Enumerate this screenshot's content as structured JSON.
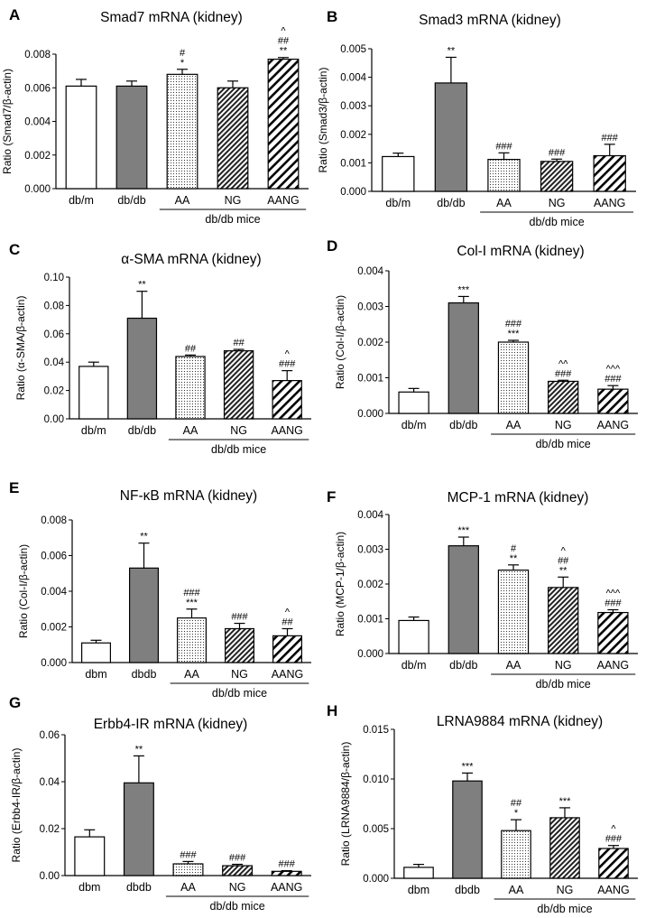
{
  "colors": {
    "white_bar": "#ffffff",
    "gray_bar": "#7f7f7f",
    "stroke": "#000000"
  },
  "chart_data": [
    {
      "type": "bar",
      "letter": "A",
      "title": "Smad7 mRNA (kidney)",
      "ylabel": "Ratio (Smad7/β-actin)",
      "categories": [
        "db/m",
        "db/db",
        "AA",
        "NG",
        "AANG"
      ],
      "values": [
        0.0061,
        0.0061,
        0.0068,
        0.006,
        0.0077
      ],
      "errors": [
        0.0004,
        0.0003,
        0.0003,
        0.0004,
        0.0001
      ],
      "annotations": [
        [],
        [],
        [
          "#",
          "*"
        ],
        [],
        [
          "^",
          "##",
          "**"
        ]
      ],
      "patterns": [
        "white",
        "gray",
        "dots",
        "dense",
        "hatch"
      ],
      "ylim": [
        0,
        0.008
      ],
      "yticks": [
        "0.000",
        "0.002",
        "0.004",
        "0.006",
        "0.008"
      ],
      "group_label": "db/db mice"
    },
    {
      "type": "bar",
      "letter": "B",
      "title": "Smad3 mRNA (kidney)",
      "ylabel": "Ratio (Smad3/β-actin)",
      "categories": [
        "db/m",
        "db/db",
        "AA",
        "NG",
        "AANG"
      ],
      "values": [
        0.00122,
        0.0038,
        0.00112,
        0.00105,
        0.00125
      ],
      "errors": [
        0.00012,
        0.0009,
        0.00023,
        8e-05,
        0.0004
      ],
      "annotations": [
        [],
        [
          "**"
        ],
        [
          "###"
        ],
        [
          "###"
        ],
        [
          "###"
        ]
      ],
      "patterns": [
        "white",
        "gray",
        "dots",
        "dense",
        "hatch"
      ],
      "ylim": [
        0,
        0.005
      ],
      "yticks": [
        "0.000",
        "0.001",
        "0.002",
        "0.003",
        "0.004",
        "0.005"
      ],
      "group_label": "db/db mice"
    },
    {
      "type": "bar",
      "letter": "C",
      "title": "α-SMA mRNA  (kidney)",
      "ylabel": "Ratio (α-SMA/β-actin)",
      "categories": [
        "db/m",
        "db/db",
        "AA",
        "NG",
        "AANG"
      ],
      "values": [
        0.037,
        0.071,
        0.044,
        0.048,
        0.027
      ],
      "errors": [
        0.003,
        0.019,
        0.001,
        0.001,
        0.007
      ],
      "annotations": [
        [],
        [
          "**"
        ],
        [
          "##"
        ],
        [
          "##"
        ],
        [
          "^",
          "###"
        ]
      ],
      "patterns": [
        "white",
        "gray",
        "dots",
        "dense",
        "hatch"
      ],
      "ylim": [
        0,
        0.1
      ],
      "yticks": [
        "0.00",
        "0.02",
        "0.04",
        "0.06",
        "0.08",
        "0.10"
      ],
      "group_label": "db/db mice"
    },
    {
      "type": "bar",
      "letter": "D",
      "title": "Col-I mRNA (kidney)",
      "ylabel": "Ratio (Col-I/β-actin)",
      "categories": [
        "db/m",
        "db/db",
        "AA",
        "NG",
        "AANG"
      ],
      "values": [
        0.0006,
        0.0031,
        0.002,
        0.0009,
        0.00068
      ],
      "errors": [
        0.0001,
        0.00018,
        5e-05,
        3e-05,
        0.0001
      ],
      "annotations": [
        [],
        [
          "***"
        ],
        [
          "###",
          "***"
        ],
        [
          "^^",
          "###"
        ],
        [
          "^^^",
          "###"
        ]
      ],
      "patterns": [
        "white",
        "gray",
        "dots",
        "dense",
        "hatch"
      ],
      "ylim": [
        0,
        0.004
      ],
      "yticks": [
        "0.000",
        "0.001",
        "0.002",
        "0.003",
        "0.004"
      ],
      "group_label": "db/db mice"
    },
    {
      "type": "bar",
      "letter": "E",
      "title": "NF-κB mRNA (kidney)",
      "ylabel": "Ratio (Col-I/β-actin)",
      "categories": [
        "dbm",
        "dbdb",
        "AA",
        "NG",
        "AANG"
      ],
      "values": [
        0.0011,
        0.0053,
        0.0025,
        0.0019,
        0.0015
      ],
      "errors": [
        0.00015,
        0.0014,
        0.0005,
        0.0003,
        0.0004
      ],
      "annotations": [
        [],
        [
          "**"
        ],
        [
          "###",
          "***"
        ],
        [
          "###"
        ],
        [
          "^",
          "##"
        ]
      ],
      "patterns": [
        "white",
        "gray",
        "dots",
        "dense",
        "hatch"
      ],
      "ylim": [
        0,
        0.008
      ],
      "yticks": [
        "0.000",
        "0.002",
        "0.004",
        "0.006",
        "0.008"
      ],
      "group_label": "db/db mice"
    },
    {
      "type": "bar",
      "letter": "F",
      "title": "MCP-1 mRNA (kidney)",
      "ylabel": "Ratio (MCP-1/β-actin)",
      "categories": [
        "db/m",
        "db/db",
        "AA",
        "NG",
        "AANG"
      ],
      "values": [
        0.00095,
        0.0031,
        0.0024,
        0.0019,
        0.00118
      ],
      "errors": [
        0.0001,
        0.00025,
        0.00015,
        0.0003,
        8e-05
      ],
      "annotations": [
        [],
        [
          "***"
        ],
        [
          "#",
          "**"
        ],
        [
          "^",
          "##",
          "**"
        ],
        [
          "^^^",
          "###"
        ]
      ],
      "patterns": [
        "white",
        "gray",
        "dots",
        "dense",
        "hatch"
      ],
      "ylim": [
        0,
        0.004
      ],
      "yticks": [
        "0.000",
        "0.001",
        "0.002",
        "0.003",
        "0.004"
      ],
      "group_label": "db/db mice"
    },
    {
      "type": "bar",
      "letter": "G",
      "title": "Erbb4-IR mRNA (kidney)",
      "ylabel": "Ratio (Erbb4-IR/β-actin)",
      "categories": [
        "dbm",
        "dbdb",
        "AA",
        "NG",
        "AANG"
      ],
      "values": [
        0.0165,
        0.0395,
        0.005,
        0.0042,
        0.0018
      ],
      "errors": [
        0.003,
        0.0115,
        0.001,
        0.0006,
        0.0003
      ],
      "annotations": [
        [],
        [
          "**"
        ],
        [
          "###"
        ],
        [
          "###"
        ],
        [
          "###"
        ]
      ],
      "patterns": [
        "white",
        "gray",
        "dots",
        "dense",
        "hatch"
      ],
      "ylim": [
        0,
        0.06
      ],
      "yticks": [
        "0.00",
        "0.02",
        "0.04",
        "0.06"
      ],
      "group_label": "db/db mice"
    },
    {
      "type": "bar",
      "letter": "H",
      "title": "LRNA9884 mRNA (kidney)",
      "ylabel": "Ratio (LRNA9884/β-actin)",
      "categories": [
        "dbm",
        "dbdb",
        "AA",
        "NG",
        "AANG"
      ],
      "values": [
        0.0011,
        0.0098,
        0.0048,
        0.0061,
        0.003
      ],
      "errors": [
        0.0003,
        0.0008,
        0.0011,
        0.001,
        0.0003
      ],
      "annotations": [
        [],
        [
          "***"
        ],
        [
          "##",
          "*"
        ],
        [
          "***"
        ],
        [
          "^",
          "###"
        ]
      ],
      "patterns": [
        "white",
        "gray",
        "dots",
        "dense",
        "hatch"
      ],
      "ylim": [
        0,
        0.015
      ],
      "yticks": [
        "0.000",
        "0.005",
        "0.010",
        "0.015"
      ],
      "group_label": "db/db mice"
    }
  ]
}
